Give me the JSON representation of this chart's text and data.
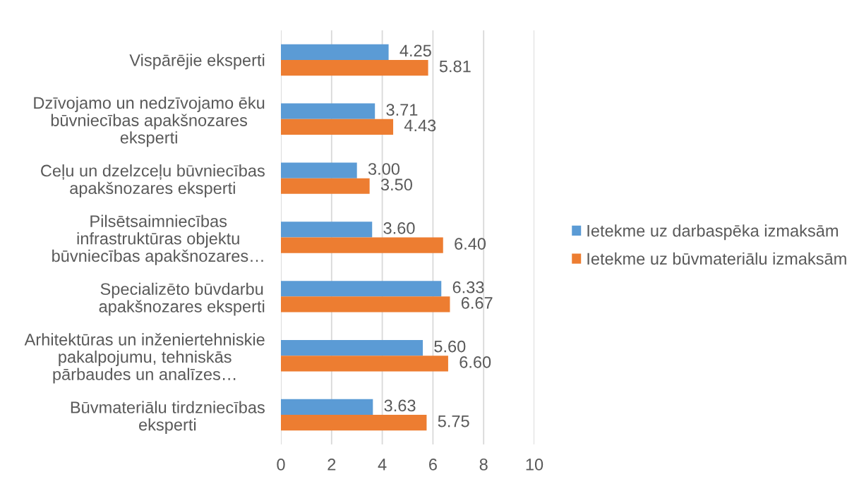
{
  "chart_data": {
    "type": "bar",
    "orientation": "horizontal",
    "categories": [
      "Vispārējie eksperti",
      "Dzīvojamo un nedzīvojamo ēku\nbūvniecības apakšnozares\neksperti",
      "Ceļu un dzelzceļu būvniecības\napakšnozares eksperti",
      "Pilsētsaimniecības\ninfrastruktūras objektu\nbūvniecības apakšnozares…",
      "Specializēto būvdarbu\napakšnozares eksperti",
      "Arhitektūras un inženiertehniskie\npakalpojumu, tehniskās\npārbaudes un analīzes…",
      "Būvmateriālu tirdzniecības\neksperti"
    ],
    "series": [
      {
        "name": "Ietekme uz darbaspēka izmaksām",
        "color": "#5b9bd5",
        "values": [
          4.25,
          3.71,
          3.0,
          3.6,
          6.33,
          5.6,
          3.63
        ],
        "value_labels": [
          "4.25",
          "3.71",
          "3.00",
          "3.60",
          "6.33",
          "5.60",
          "3.63"
        ]
      },
      {
        "name": "Ietekme uz būvmateriālu izmaksām",
        "color": "#ed7d31",
        "values": [
          5.81,
          4.43,
          3.5,
          6.4,
          6.67,
          6.6,
          5.75
        ],
        "value_labels": [
          "5.81",
          "4.43",
          "3.50",
          "6.40",
          "6.67",
          "6.60",
          "5.75"
        ]
      }
    ],
    "xlim": [
      0,
      10
    ],
    "xticks": [
      0,
      2,
      4,
      6,
      8,
      10
    ],
    "grid": "x",
    "legend": "right"
  }
}
